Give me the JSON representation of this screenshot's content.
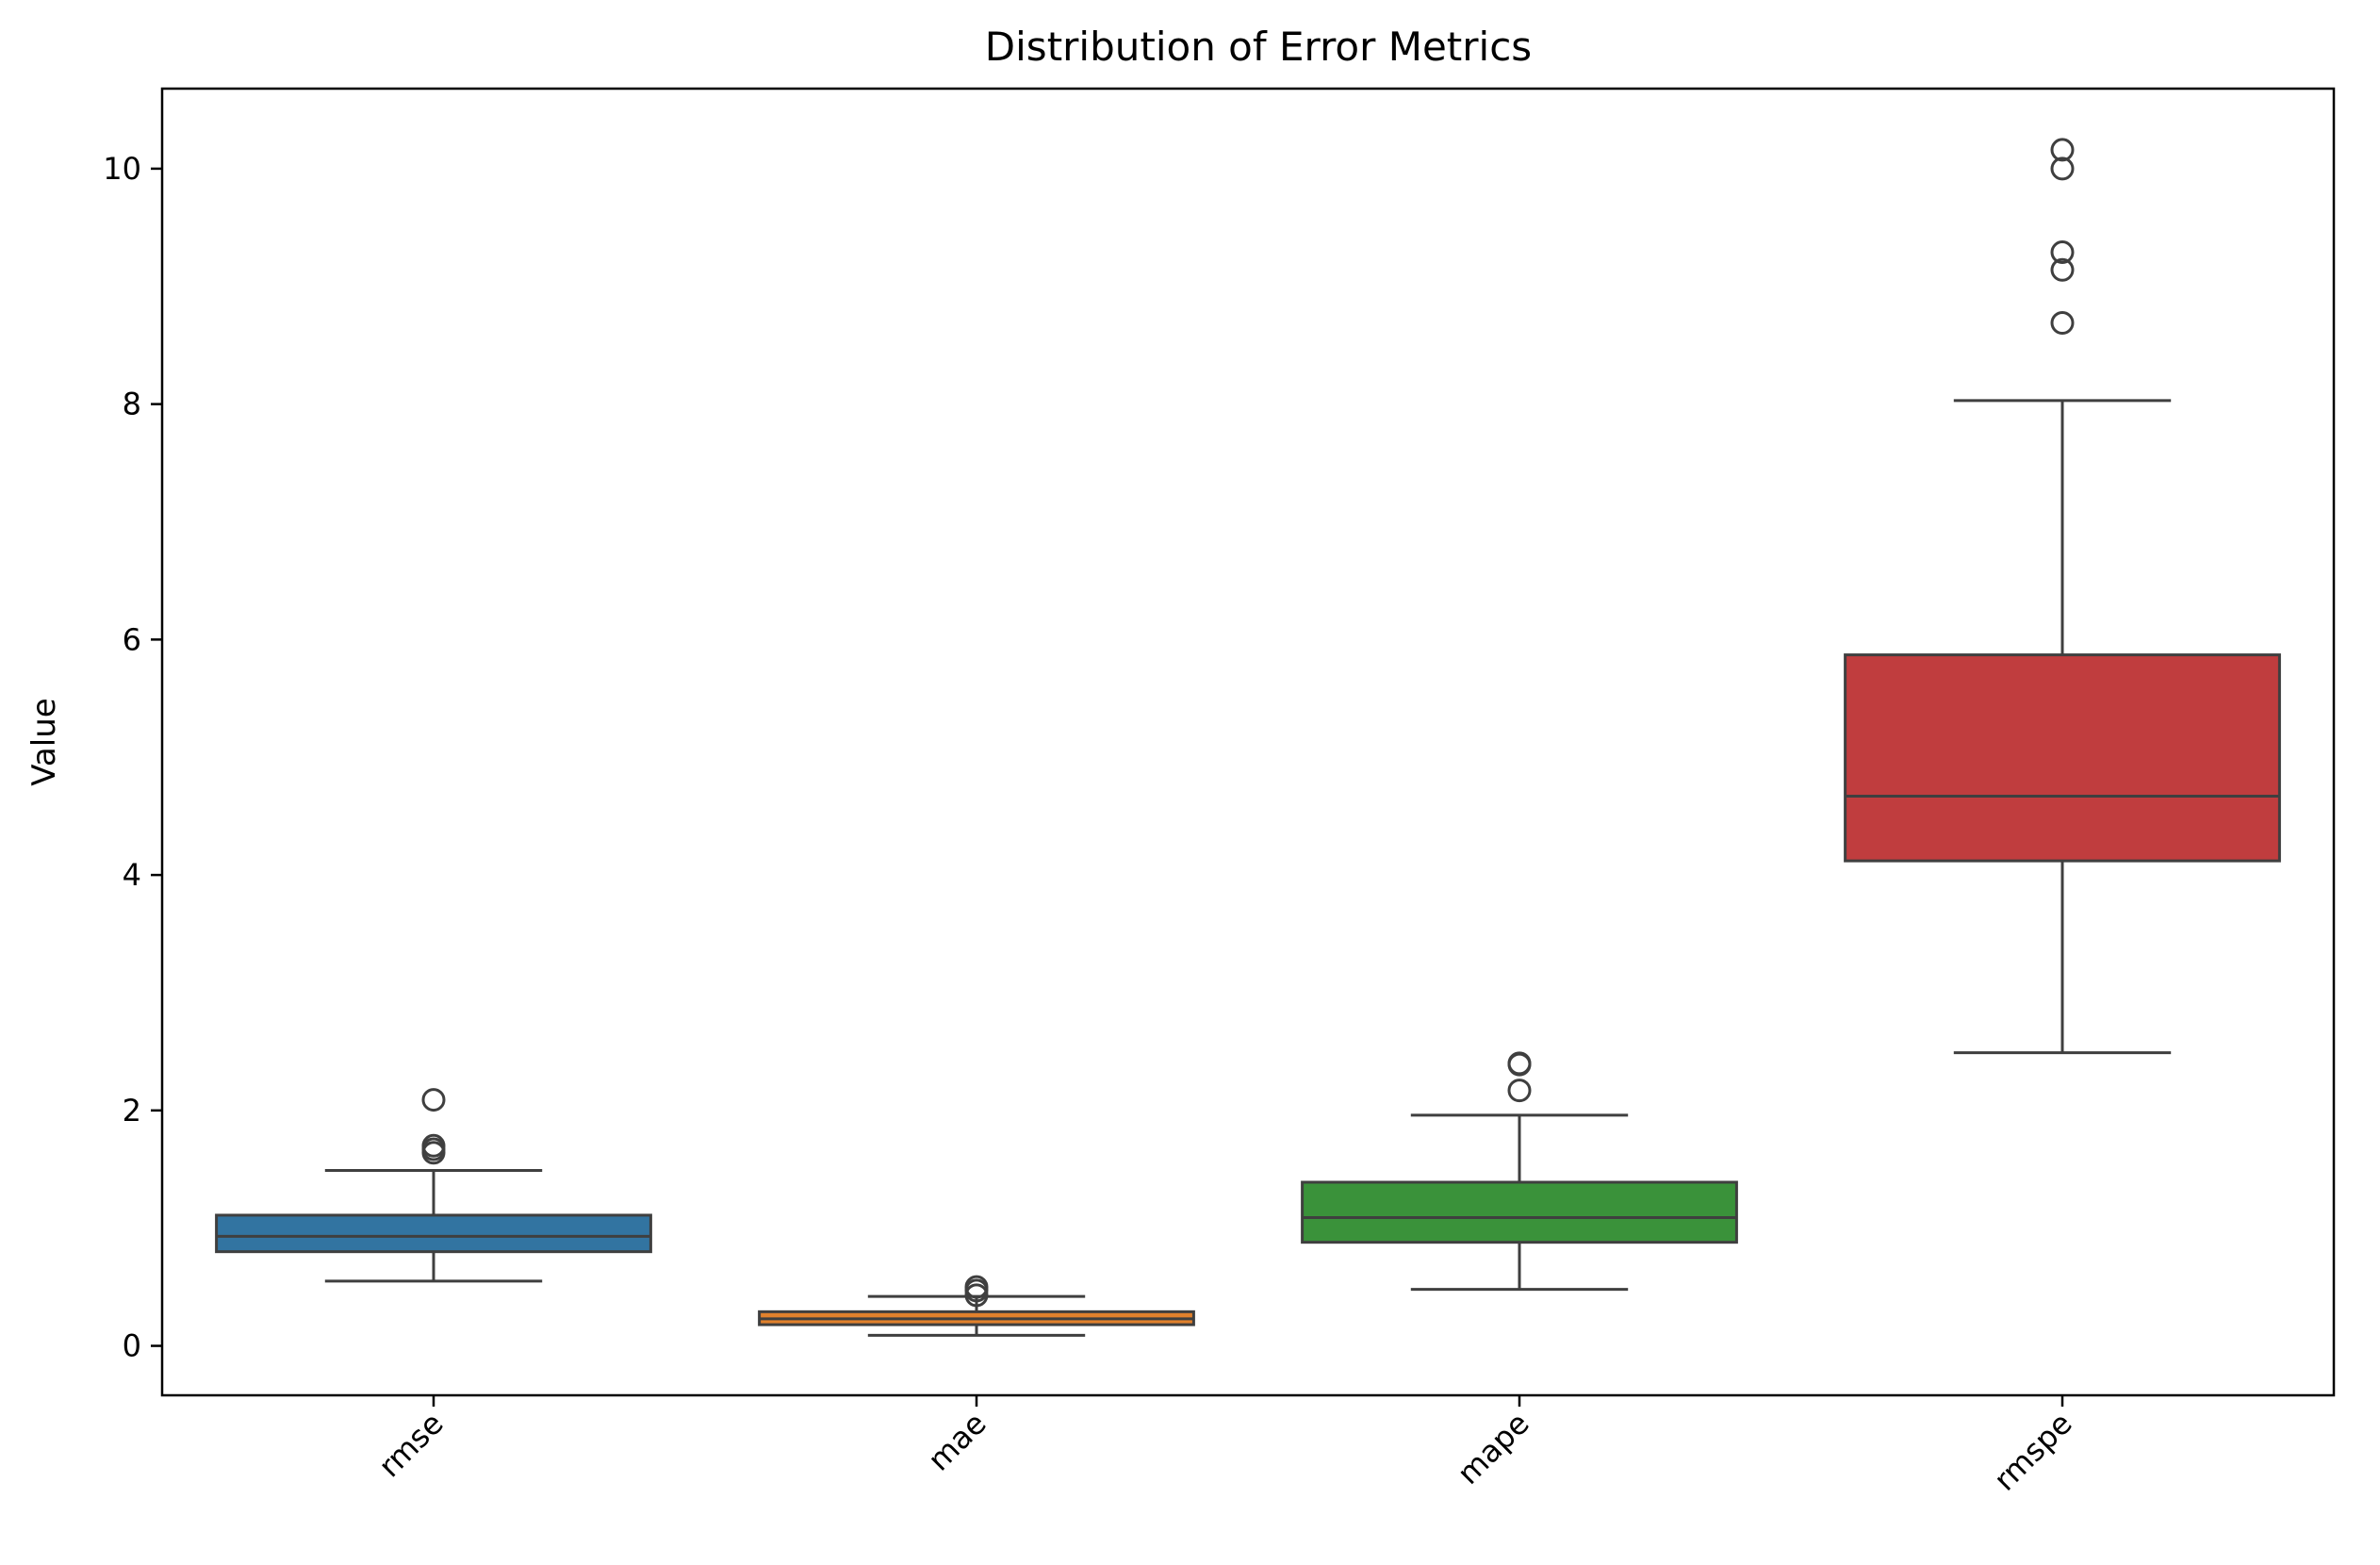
{
  "chart_data": {
    "type": "box",
    "title": "Distribution of Error Metrics",
    "xlabel": "",
    "ylabel": "Value",
    "ylim": [
      -0.42,
      10.68
    ],
    "yticks": [
      0,
      2,
      4,
      6,
      8,
      10
    ],
    "categories": [
      "rmse",
      "mae",
      "mape",
      "rmspe"
    ],
    "grid": false,
    "boxes": [
      {
        "category": "rmse",
        "whisker_low": 0.55,
        "q1": 0.8,
        "median": 0.93,
        "q3": 1.11,
        "whisker_high": 1.49,
        "outliers": [
          1.64,
          1.67,
          1.7,
          2.09
        ],
        "color": "#3274a1"
      },
      {
        "category": "mae",
        "whisker_low": 0.09,
        "q1": 0.18,
        "median": 0.23,
        "q3": 0.29,
        "whisker_high": 0.42,
        "outliers": [
          0.43,
          0.47,
          0.5
        ],
        "color": "#e1812c"
      },
      {
        "category": "mape",
        "whisker_low": 0.48,
        "q1": 0.88,
        "median": 1.09,
        "q3": 1.39,
        "whisker_high": 1.96,
        "outliers": [
          2.17,
          2.39,
          2.4
        ],
        "color": "#3a923a"
      },
      {
        "category": "rmspe",
        "whisker_low": 2.49,
        "q1": 4.12,
        "median": 4.67,
        "q3": 5.87,
        "whisker_high": 8.03,
        "outliers": [
          8.69,
          9.14,
          9.29,
          10.0,
          10.16
        ],
        "color": "#c03d3e"
      }
    ]
  }
}
